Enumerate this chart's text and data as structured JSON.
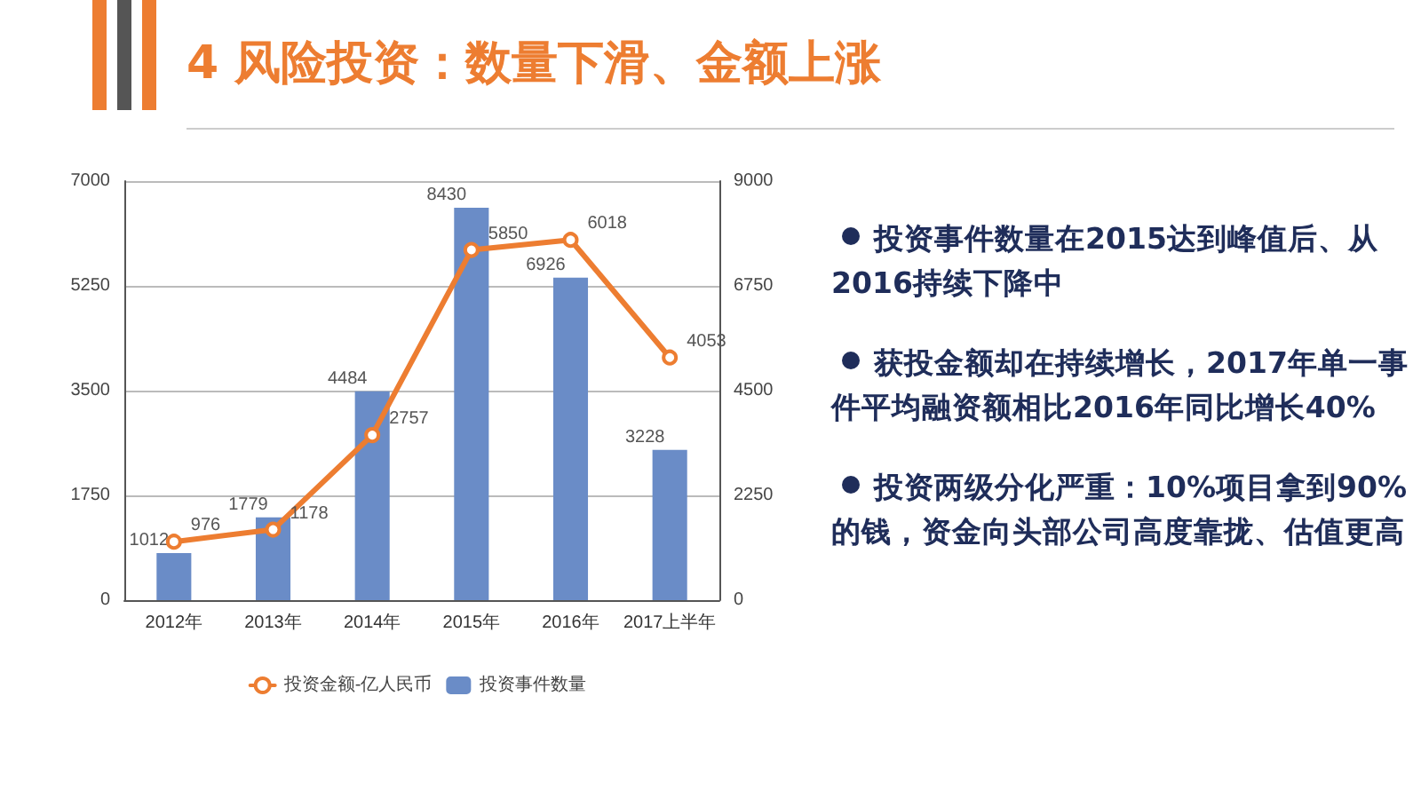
{
  "chart_data": {
    "type": "bar",
    "title": "4  风险投资：数量下滑、金额上涨",
    "categories": [
      "2012年",
      "2013年",
      "2014年",
      "2015年",
      "2016年",
      "2017上半年"
    ],
    "series": [
      {
        "name": "投资金额-亿人民币",
        "type": "line",
        "color": "#ed7d31",
        "values": [
          976,
          1178,
          2757,
          5850,
          6018,
          4053
        ]
      },
      {
        "name": "投资事件数量",
        "axis": "y2",
        "color": "#6a8cc7",
        "values": [
          1012,
          1779,
          4484,
          8430,
          6926,
          3228
        ]
      }
    ],
    "ylim": [
      0,
      7000
    ],
    "yticks": [
      0,
      1750,
      3500,
      5250,
      7000
    ],
    "y2lim": [
      0,
      9000
    ],
    "y2ticks": [
      0,
      2250,
      4500,
      6750,
      9000
    ],
    "grid": "y",
    "legend": "bottom",
    "data_labels": true,
    "marker": "circle",
    "line_style": "solid",
    "annotations": [
      "投资事件数量在2015达到峰值后、从2016持续下降中",
      "获投金额却在持续增长，2017年单一事件平均融资额相比2016年同比增长40%",
      "投资两级分化严重：10%项目拿到90%的钱，资金向头部公司高度靠拢、估值更高"
    ]
  }
}
